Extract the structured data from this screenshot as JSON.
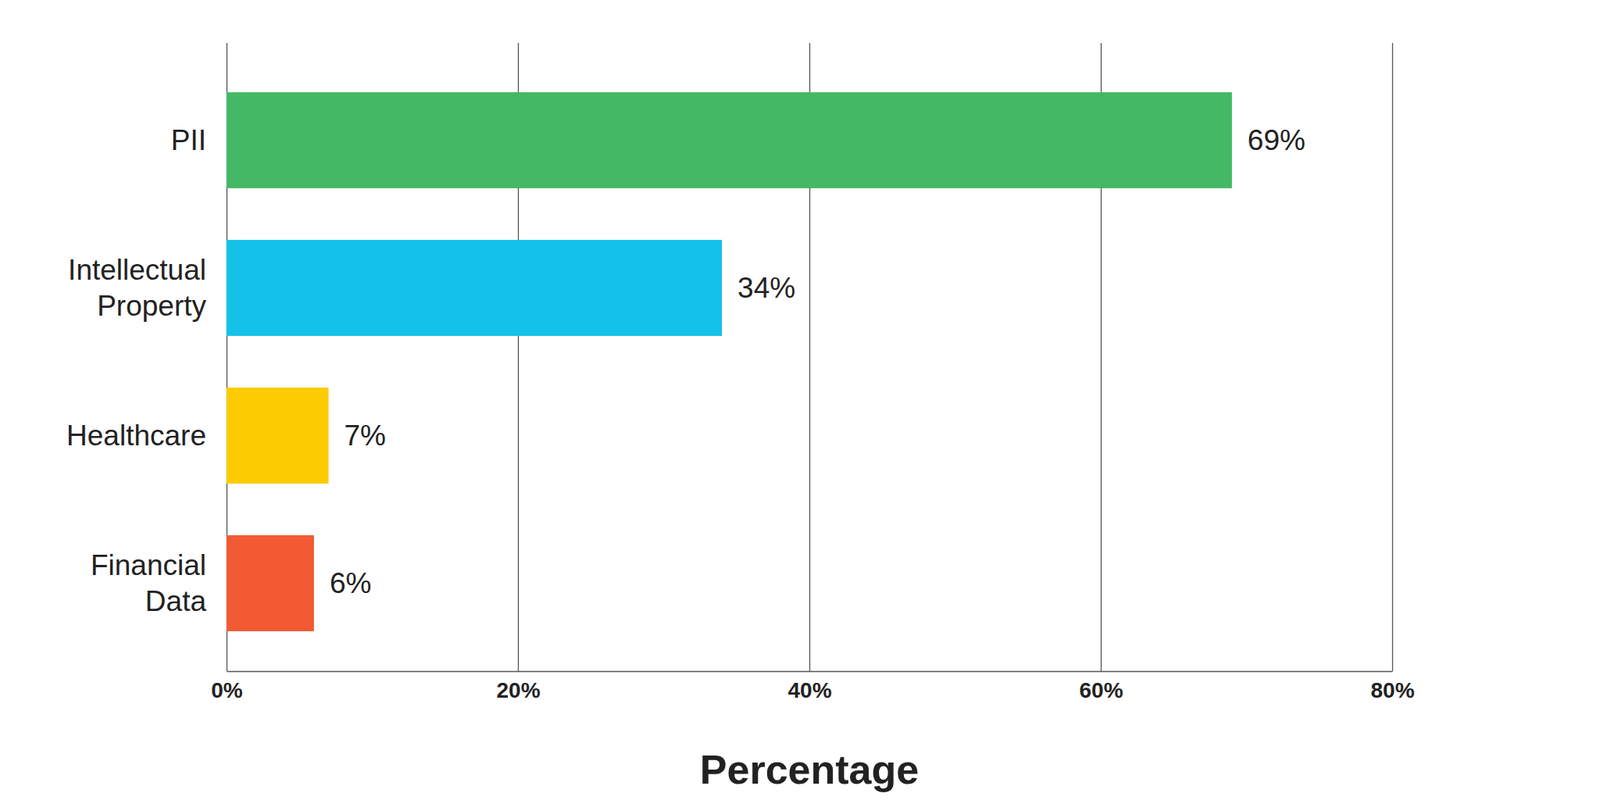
{
  "chart_data": {
    "type": "bar",
    "orientation": "horizontal",
    "categories": [
      "PII",
      "Intellectual Property",
      "Healthcare",
      "Financial Data"
    ],
    "values": [
      69,
      34,
      7,
      6
    ],
    "value_labels": [
      "69%",
      "34%",
      "7%",
      "6%"
    ],
    "colors": [
      "#44b864",
      "#14c1e8",
      "#fccb00",
      "#f15a33"
    ],
    "x_label": "Percentage",
    "xlim": [
      0,
      80
    ],
    "xticks": [
      {
        "value": 0,
        "label": "0%"
      },
      {
        "value": 20,
        "label": "20%"
      },
      {
        "value": 40,
        "label": "40%"
      },
      {
        "value": 60,
        "label": "60%"
      },
      {
        "value": 80,
        "label": "80%"
      }
    ],
    "grid": true,
    "data_labels": true
  }
}
